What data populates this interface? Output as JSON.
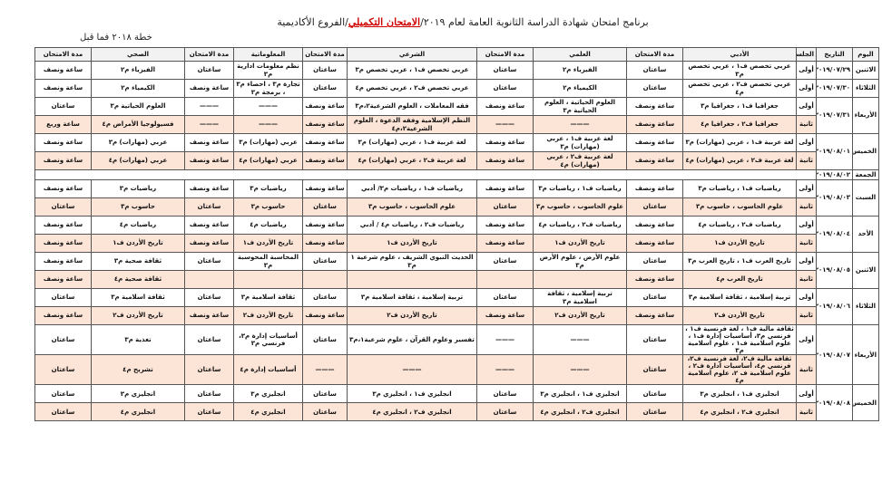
{
  "header": {
    "title_pre": "برنامج امتحان شهادة الدراسة الثانوية العامة لعام ٢٠١٩/",
    "title_highlight": "الامتحان التكميلي",
    "title_post": "/الفروع الأكاديمية",
    "subtitle": "خطة ٢٠١٨ فما قبل"
  },
  "table": {
    "columns": [
      "اليوم",
      "التاريخ",
      "الجلسة",
      "الأدبي",
      "مدة الامتحان",
      "العلمي",
      "مدة الامتحان",
      "الشرعي",
      "مدة الامتحان",
      "المعلوماتية",
      "مدة الامتحان",
      "الصحي",
      "مدة الامتحان"
    ],
    "days": [
      {
        "day": "الاثنين",
        "date": "٢٠١٩/٠٧/٢٩",
        "sessions": [
          {
            "name": "أولى",
            "cells": [
              "عربي تخصص ف١ ، عربي تخصص م٣",
              "ساعتان",
              "الفيزياء م٢",
              "ساعتان",
              "عربي تخصص ف١ ، عربي تخصص م٣",
              "ساعتان",
              "نظم معلومات ادارية م٣",
              "ساعتان",
              "الفيزياء م٢",
              "ساعة ونصف"
            ]
          }
        ]
      },
      {
        "day": "الثلاثاء",
        "date": "٢٠١٩/٠٧/٣٠",
        "sessions": [
          {
            "name": "أولى",
            "cells": [
              "عربي تخصص ف٢ ، عربي تخصص م٤",
              "ساعتان",
              "الكيمياء م٢",
              "ساعتان",
              "عربي تخصص ف٢ ، عربي تخصص م٤",
              "ساعتان",
              "تجارة م٣ ، احصاء م٣ ، برمجة م٣",
              "ساعة ونصف",
              "الكيمياء م٢",
              "ساعة ونصف"
            ]
          }
        ]
      },
      {
        "day": "الأربعاء",
        "date": "٢٠١٩/٠٧/٣١",
        "sessions": [
          {
            "name": "أولى",
            "cells": [
              "جغرافيا ف١ ، جغرافيا م٣",
              "ساعة ونصف",
              "العلوم الحياتية ، العلوم الحياتية م٣",
              "ساعة ونصف",
              "فقه المعاملات ، العلوم الشرعية٢،م٣",
              "ساعة ونصف",
              "———",
              "———",
              "العلوم الحياتية م٣",
              "ساعتان"
            ]
          },
          {
            "name": "ثانية",
            "cells": [
              "جغرافيا ف٢ ، جغرافيا م٤",
              "ساعة ونصف",
              "———",
              "———",
              "النظم الإسلامية وفقه الدعوة ، العلوم الشرعية٢،م٤",
              "ساعة ونصف",
              "———",
              "———",
              "فسيولوجيا الأمراض م٤",
              "ساعة وربع"
            ]
          }
        ]
      },
      {
        "day": "الخميس",
        "date": "٢٠١٩/٠٨/٠١",
        "sessions": [
          {
            "name": "أولى",
            "cells": [
              "لغة عربية ف١ ، عربي (مهارات) م٣",
              "ساعة ونصف",
              "لغة عربية ف١ ، عربي (مهارات) م٣",
              "ساعة ونصف",
              "لغة عربية ف١ ، عربي (مهارات) م٣",
              "ساعة ونصف",
              "عربي (مهارات) م٣",
              "ساعة ونصف",
              "عربي (مهارات) م٣",
              "ساعة ونصف"
            ]
          },
          {
            "name": "ثانية",
            "cells": [
              "لغة عربية ف٢ ، عربي (مهارات) م٤",
              "ساعة ونصف",
              "لغة عربية ف٢ ، عربي (مهارات) م٤",
              "ساعة ونصف",
              "لغة عربية ف٢ ، عربي (مهارات) م٤",
              "ساعة ونصف",
              "عربي (مهارات) م٤",
              "ساعة ونصف",
              "عربي (مهارات) م٤",
              "ساعة ونصف"
            ]
          }
        ]
      },
      {
        "day": "الجمعة",
        "date": "٢٠١٩/٠٨/٠٢",
        "sessions": []
      },
      {
        "day": "السبت",
        "date": "٢٠١٩/٠٨/٠٣",
        "sessions": [
          {
            "name": "أولى",
            "cells": [
              "رياضيات ف١ ، رياضيات م٣",
              "ساعة ونصف",
              "رياضيات ف١ ، رياضيات م٣",
              "ساعة ونصف",
              "رياضيات ف١ ، رياضيات م٣/ أدبي",
              "ساعة ونصف",
              "رياضيات م٣",
              "ساعة ونصف",
              "رياضيات م٣",
              "ساعة ونصف"
            ]
          },
          {
            "name": "ثانية",
            "cells": [
              "علوم الحاسوب ، حاسوب م٣",
              "ساعتان",
              "علوم الحاسوب ، حاسوب م٣",
              "ساعتان",
              "علوم الحاسوب ، حاسوب م٣",
              "ساعتان",
              "حاسوب م٣",
              "ساعتان",
              "حاسوب م٣",
              "ساعتان"
            ]
          }
        ]
      },
      {
        "day": "الأحد",
        "date": "٢٠١٩/٠٨/٠٤",
        "sessions": [
          {
            "name": "أولى",
            "cells": [
              "رياضيات ف٢ ، رياضيات م٤",
              "ساعة ونصف",
              "رياضيات ف٢ ، رياضيات م٤",
              "ساعة ونصف",
              "رياضيات ف٢ ، رياضيات م٤ / أدبي",
              "ساعة ونصف",
              "رياضيات م٤",
              "ساعة ونصف",
              "رياضيات م٤",
              "ساعة ونصف"
            ]
          },
          {
            "name": "ثانية",
            "cells": [
              "تاريخ الأردن ف١",
              "ساعة ونصف",
              "تاريخ الأردن ف١",
              "ساعة ونصف",
              "تاريخ الأردن ف١",
              "ساعة ونصف",
              "تاريخ الأردن ف١",
              "ساعة ونصف",
              "تاريخ الأردن ف١",
              "ساعة ونصف"
            ]
          }
        ]
      },
      {
        "day": "الاثنين",
        "date": "٢٠١٩/٠٨/٠٥",
        "sessions": [
          {
            "name": "أولى",
            "cells": [
              "تاريخ العرب ف١ ، تاريخ العرب م٣",
              "ساعتان",
              "علوم الأرض ، علوم الأرض م٣",
              "ساعتان",
              "الحديث النبوي الشريف ، علوم شرعية ١ م٣",
              "ساعتان",
              "المحاسبة المحوسبة م٣",
              "ساعتان",
              "ثقافة صحية م٣",
              "ساعة ونصف"
            ]
          },
          {
            "name": "ثانية",
            "cells": [
              "تاريخ العرب م٤",
              "ساعة ونصف",
              null,
              null,
              null,
              null,
              null,
              null,
              "ثقافة صحية م٤",
              "ساعة ونصف"
            ]
          }
        ]
      },
      {
        "day": "الثلاثاء",
        "date": "٢٠١٩/٠٨/٠٦",
        "sessions": [
          {
            "name": "أولى",
            "cells": [
              "تربية إسلامية ، ثقافة اسلامية م٣",
              "ساعتان",
              "تربية إسلامية ، ثقافة اسلامية م٣",
              "ساعتان",
              "تربية إسلامية ، ثقافة اسلامية م٣",
              "ساعتان",
              "ثقافة اسلامية م٣",
              "ساعتان",
              "ثقافة اسلامية م٣",
              "ساعتان"
            ]
          },
          {
            "name": "ثانية",
            "cells": [
              "تاريخ الأردن ف٢",
              "ساعة ونصف",
              "تاريخ الأردن ف٢",
              "ساعة ونصف",
              "تاريخ الأردن ف٢",
              "ساعة ونصف",
              "تاريخ الأردن ف٢",
              "ساعة ونصف",
              "تاريخ الأردن ف٢",
              "ساعة ونصف"
            ]
          }
        ]
      },
      {
        "day": "الأربعاء",
        "date": "٢٠١٩/٠٨/٠٧",
        "sessions": [
          {
            "name": "أولى",
            "cells": [
              "ثقافة مالية ف١ ، لغة فرنسية ف١ ، فرنسي م٣، أساسيات إدارة ف١ ، علوم اسلامية ف١ ، علوم اسلامية م٣",
              "ساعتان",
              "———",
              "———",
              "تفسير وعلوم القرآن ، علوم شرعية١،م٣",
              "ساعتان",
              "أساسيات إدارة م٣، فرنسي م٣",
              "ساعتان",
              "تغذية م٣",
              "ساعتان"
            ]
          },
          {
            "name": "ثانية",
            "cells": [
              "ثقافة مالية ف٢، لغة فرنسية ف٢، فرنسي م٤، أساسيات ادارة ف٢ ، علوم اسلامية ف ٢، علوم اسلامية م٤",
              "ساعتان",
              "———",
              "———",
              "———",
              "———",
              "أساسيات إدارة م٤",
              "ساعتان",
              "تشريح م٤",
              "ساعتان"
            ]
          }
        ]
      },
      {
        "day": "الخميس",
        "date": "٢٠١٩/٠٨/٠٨",
        "sessions": [
          {
            "name": "أولى",
            "cells": [
              "انجليزي ف١ ، انجليزي م٣",
              "ساعتان",
              "انجليزي ف١ ، انجليزي م٣",
              "ساعتان",
              "انجليزي ف١ ، انجليزي م٣",
              "ساعتان",
              "انجليزي م٣",
              "ساعتان",
              "انجليزي م٣",
              "ساعتان"
            ]
          },
          {
            "name": "ثانية",
            "cells": [
              "انجليزي ف٢ ، انجليزي م٤",
              "ساعتان",
              "انجليزي ف٢ ، انجليزي م٤",
              "ساعتان",
              "انجليزي ف٢ ، انجليزي م٤",
              "ساعتان",
              "انجليزي م٤",
              "ساعتان",
              "انجليزي م٤",
              "ساعتان"
            ]
          }
        ]
      }
    ]
  }
}
